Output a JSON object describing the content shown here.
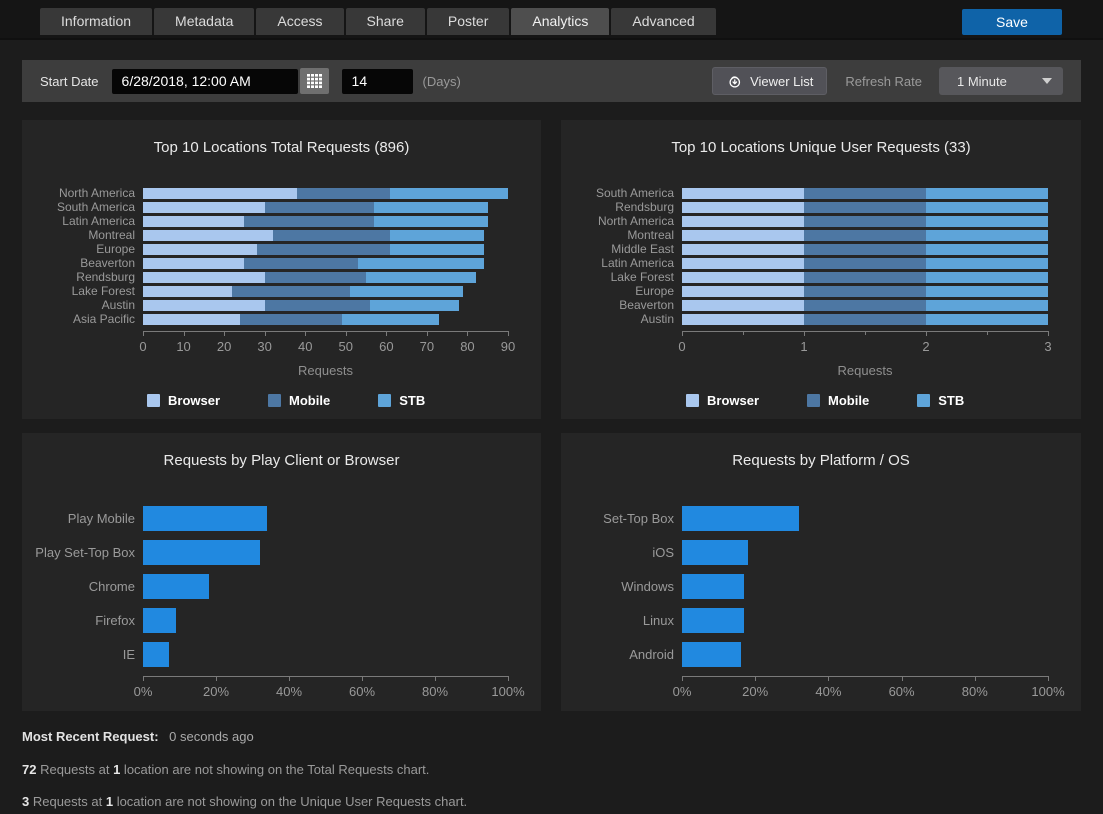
{
  "tabs": {
    "items": [
      {
        "label": "Information"
      },
      {
        "label": "Metadata"
      },
      {
        "label": "Access"
      },
      {
        "label": "Share"
      },
      {
        "label": "Poster"
      },
      {
        "label": "Analytics"
      },
      {
        "label": "Advanced"
      }
    ],
    "active": "Analytics"
  },
  "save_label": "Save",
  "toolbar": {
    "start_date_label": "Start Date",
    "start_date_value": "6/28/2018, 12:00 AM",
    "days_value": "14",
    "days_label": "(Days)",
    "viewer_list_label": "Viewer List",
    "refresh_rate_label": "Refresh Rate",
    "refresh_rate_value": "1 Minute"
  },
  "colors": {
    "accent_blue": "#0f63a8",
    "bar_browser": "#a9c7ee",
    "bar_mobile": "#4d77a3",
    "bar_stb": "#5ea4d9",
    "bar_bright": "#2189e0",
    "panel_bg": "#252525",
    "page_bg": "#1c1c1c"
  },
  "legend": {
    "browser": "Browser",
    "mobile": "Mobile",
    "stb": "STB"
  },
  "chart_data": [
    {
      "type": "bar",
      "orientation": "horizontal",
      "stacked": true,
      "title": "Top 10 Locations Total Requests (896)",
      "xlabel": "Requests",
      "xlim": [
        0,
        90
      ],
      "xticks": [
        0,
        10,
        20,
        30,
        40,
        50,
        60,
        70,
        80,
        90
      ],
      "tick_suffix": "",
      "legend_position": "bottom",
      "categories": [
        "North America",
        "South America",
        "Latin America",
        "Montreal",
        "Europe",
        "Beaverton",
        "Rendsburg",
        "Lake Forest",
        "Austin",
        "Asia Pacific"
      ],
      "series": [
        {
          "name": "Browser",
          "color": "#a9c7ee",
          "values": [
            38,
            30,
            25,
            32,
            28,
            25,
            30,
            22,
            30,
            24
          ]
        },
        {
          "name": "Mobile",
          "color": "#4d77a3",
          "values": [
            23,
            27,
            32,
            29,
            33,
            28,
            25,
            29,
            26,
            25
          ]
        },
        {
          "name": "STB",
          "color": "#5ea4d9",
          "values": [
            29,
            28,
            28,
            23,
            23,
            31,
            27,
            28,
            22,
            24
          ]
        }
      ],
      "totals": [
        90,
        85,
        85,
        84,
        84,
        84,
        82,
        79,
        78,
        73
      ]
    },
    {
      "type": "bar",
      "orientation": "horizontal",
      "stacked": true,
      "title": "Top 10 Locations Unique User Requests (33)",
      "xlabel": "Requests",
      "xlim": [
        0,
        3
      ],
      "xticks": [
        0,
        1,
        2,
        3
      ],
      "minor_ticks": [
        0.5,
        1.5,
        2.5
      ],
      "tick_suffix": "",
      "legend_position": "bottom",
      "categories": [
        "South America",
        "Rendsburg",
        "North America",
        "Montreal",
        "Middle East",
        "Latin America",
        "Lake Forest",
        "Europe",
        "Beaverton",
        "Austin"
      ],
      "series": [
        {
          "name": "Browser",
          "color": "#a9c7ee",
          "values": [
            1,
            1,
            1,
            1,
            1,
            1,
            1,
            1,
            1,
            1
          ]
        },
        {
          "name": "Mobile",
          "color": "#4d77a3",
          "values": [
            1,
            1,
            1,
            1,
            1,
            1,
            1,
            1,
            1,
            1
          ]
        },
        {
          "name": "STB",
          "color": "#5ea4d9",
          "values": [
            1,
            1,
            1,
            1,
            1,
            1,
            1,
            1,
            1,
            1
          ]
        }
      ],
      "totals": [
        3,
        3,
        3,
        3,
        3,
        3,
        3,
        3,
        3,
        3
      ]
    },
    {
      "type": "bar",
      "orientation": "horizontal",
      "stacked": false,
      "title": "Requests by Play Client or Browser",
      "xlabel": "",
      "xlim": [
        0,
        100
      ],
      "xticks": [
        0,
        20,
        40,
        60,
        80,
        100
      ],
      "tick_suffix": "%",
      "color": "#2189e0",
      "categories": [
        "Play Mobile",
        "Play Set-Top Box",
        "Chrome",
        "Firefox",
        "IE"
      ],
      "values": [
        34,
        32,
        18,
        9,
        7
      ]
    },
    {
      "type": "bar",
      "orientation": "horizontal",
      "stacked": false,
      "title": "Requests by Platform / OS",
      "xlabel": "",
      "xlim": [
        0,
        100
      ],
      "xticks": [
        0,
        20,
        40,
        60,
        80,
        100
      ],
      "tick_suffix": "%",
      "color": "#2189e0",
      "categories": [
        "Set-Top Box",
        "iOS",
        "Windows",
        "Linux",
        "Android"
      ],
      "values": [
        32,
        18,
        17,
        17,
        16
      ]
    }
  ],
  "footer": {
    "most_recent_label": "Most Recent Request:",
    "most_recent_value": "0 seconds ago",
    "note1": {
      "n1": "72",
      "t1": " Requests at ",
      "n2": "1",
      "t2": " location are not showing on the Total Requests chart."
    },
    "note2": {
      "n1": "3",
      "t1": " Requests at ",
      "n2": "1",
      "t2": " location are not showing on the Unique User Requests chart."
    }
  }
}
